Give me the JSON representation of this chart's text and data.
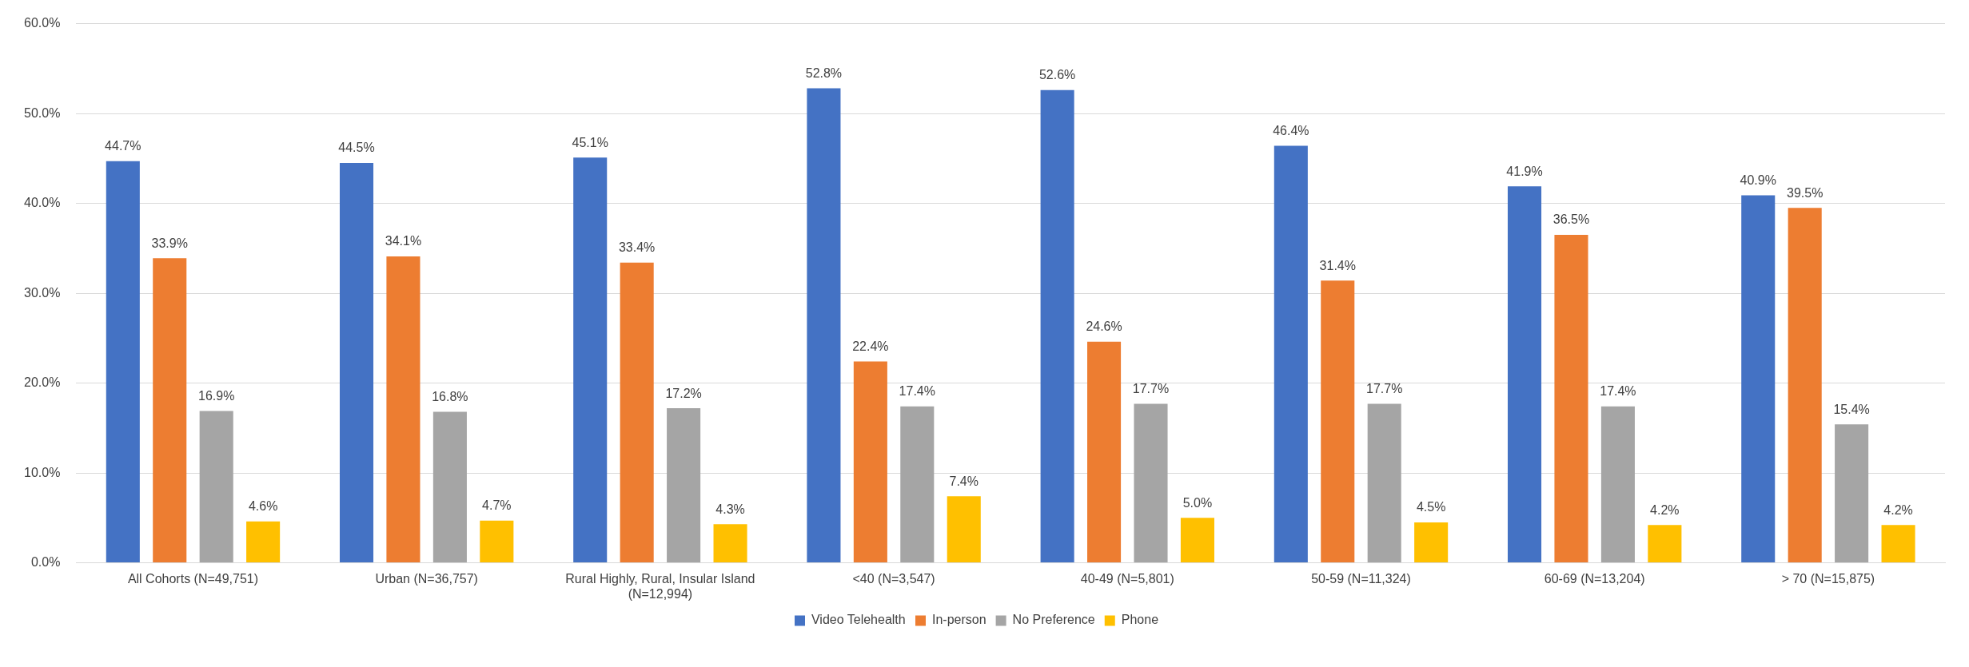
{
  "chart_data": {
    "type": "bar",
    "categories": [
      "All Cohorts (N=49,751)",
      "Urban (N=36,757)",
      "Rural Highly, Rural, Insular Island (N=12,994)",
      "<40 (N=3,547)",
      "40-49 (N=5,801)",
      "50-59 (N=11,324)",
      "60-69 (N=13,204)",
      "> 70 (N=15,875)"
    ],
    "series": [
      {
        "name": "Video Telehealth",
        "color": "#4472c4",
        "values": [
          44.7,
          44.5,
          45.1,
          52.8,
          52.6,
          46.4,
          41.9,
          40.9
        ],
        "value_labels": [
          "44.7%",
          "44.5%",
          "45.1%",
          "52.8%",
          "52.6%",
          "46.4%",
          "41.9%",
          "40.9%"
        ]
      },
      {
        "name": "In-person",
        "color": "#ed7d31",
        "values": [
          33.9,
          34.1,
          33.4,
          22.4,
          24.6,
          31.4,
          36.5,
          39.5
        ],
        "value_labels": [
          "33.9%",
          "34.1%",
          "33.4%",
          "22.4%",
          "24.6%",
          "31.4%",
          "36.5%",
          "39.5%"
        ]
      },
      {
        "name": "No Preference",
        "color": "#a5a5a5",
        "values": [
          16.9,
          16.8,
          17.2,
          17.4,
          17.7,
          17.7,
          17.4,
          15.4
        ],
        "value_labels": [
          "16.9%",
          "16.8%",
          "17.2%",
          "17.4%",
          "17.7%",
          "17.7%",
          "17.4%",
          "15.4%"
        ]
      },
      {
        "name": "Phone",
        "color": "#ffc000",
        "values": [
          4.6,
          4.7,
          4.3,
          7.4,
          5.0,
          4.5,
          4.2,
          4.2
        ],
        "value_labels": [
          "4.6%",
          "4.7%",
          "4.3%",
          "7.4%",
          "5.0%",
          "4.5%",
          "4.2%",
          "4.2%"
        ]
      }
    ],
    "ylim": [
      0,
      60
    ],
    "yticks": [
      {
        "value": 0,
        "label": "0.0%"
      },
      {
        "value": 10,
        "label": "10.0%"
      },
      {
        "value": 20,
        "label": "20.0%"
      },
      {
        "value": 30,
        "label": "30.0%"
      },
      {
        "value": 40,
        "label": "40.0%"
      },
      {
        "value": 50,
        "label": "50.0%"
      },
      {
        "value": 60,
        "label": "60.0%"
      }
    ],
    "grid": "y",
    "legend": "bottom"
  }
}
